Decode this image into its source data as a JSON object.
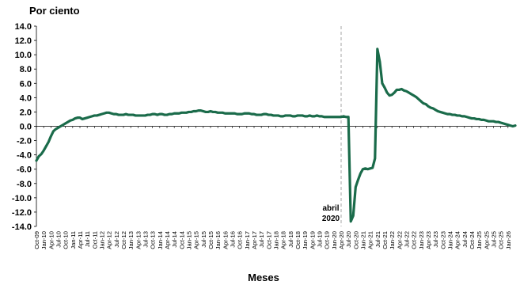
{
  "chart_data": {
    "type": "line",
    "ylabel": "Por ciento",
    "xlabel": "Meses",
    "ylim": [
      -14,
      14
    ],
    "yticks": [
      14,
      12,
      10,
      8,
      6,
      4,
      2,
      0,
      -2,
      -4,
      -6,
      -8,
      -10,
      -12,
      -14
    ],
    "ytick_labels": [
      "14.0",
      "12.0",
      "10.0",
      "8.0",
      "6.0",
      "4.0",
      "2.0",
      "0.0",
      "-2.0",
      "-4.0",
      "-6.0",
      "-8.0",
      "-10.0",
      "-12.0",
      "-14.0"
    ],
    "x_start": "Oct-09",
    "x_end": "Jan-26",
    "x_tick_labels": [
      "Oct-09",
      "Jan-10",
      "Apr-10",
      "Jul-10",
      "Oct-10",
      "Jan-11",
      "Apr-11",
      "Jul-11",
      "Oct-11",
      "Jan-12",
      "Apr-12",
      "Jul-12",
      "Oct-12",
      "Jan-13",
      "Apr-13",
      "Jul-13",
      "Oct-13",
      "Jan-14",
      "Apr-14",
      "Jul-14",
      "Oct-14",
      "Jan-15",
      "Apr-15",
      "Jul-15",
      "Oct-15",
      "Jan-16",
      "Apr-16",
      "Jul-16",
      "Oct-16",
      "Jan-17",
      "Apr-17",
      "Jul-17",
      "Oct-17",
      "Jan-18",
      "Apr-18",
      "Jul-18",
      "Oct-18",
      "Jan-19",
      "Apr-19",
      "Jul-19",
      "Oct-19",
      "Jan-20",
      "Apr-20",
      "Jul-20",
      "Oct-20",
      "Jan-21",
      "Apr-21",
      "Jul-21",
      "Oct-21",
      "Jan-22",
      "Apr-22",
      "Jul-22",
      "Oct-22",
      "Jan-23",
      "Apr-23",
      "Jul-23",
      "Oct-23",
      "Jan-24",
      "Apr-24",
      "Jul-24",
      "Oct-24",
      "Jan-25",
      "Apr-25",
      "Jul-25",
      "Oct-25",
      "Jan-26"
    ],
    "grid": false,
    "line_color": "#1a6b4a",
    "marker_line_color": "#a6a6a6",
    "marker_date": "Apr-20",
    "annotation_lines": [
      "abril",
      "2020"
    ],
    "series": [
      {
        "values": [
          -4.8,
          -4.2,
          -3.9,
          -3.4,
          -2.8,
          -2.2,
          -1.4,
          -0.7,
          -0.4,
          -0.2,
          0.0,
          0.2,
          0.4,
          0.6,
          0.8,
          0.9,
          1.1,
          1.2,
          1.2,
          1.0,
          1.1,
          1.2,
          1.3,
          1.4,
          1.5,
          1.5,
          1.6,
          1.7,
          1.8,
          1.9,
          1.9,
          1.8,
          1.7,
          1.7,
          1.6,
          1.6,
          1.6,
          1.7,
          1.6,
          1.6,
          1.6,
          1.5,
          1.5,
          1.5,
          1.5,
          1.5,
          1.6,
          1.6,
          1.7,
          1.7,
          1.6,
          1.7,
          1.7,
          1.6,
          1.6,
          1.7,
          1.7,
          1.8,
          1.8,
          1.8,
          1.9,
          1.9,
          1.9,
          2.0,
          2.0,
          2.1,
          2.1,
          2.2,
          2.2,
          2.1,
          2.0,
          2.0,
          2.1,
          2.0,
          2.0,
          1.9,
          1.9,
          1.9,
          1.8,
          1.8,
          1.8,
          1.8,
          1.8,
          1.7,
          1.7,
          1.7,
          1.8,
          1.8,
          1.8,
          1.7,
          1.7,
          1.6,
          1.6,
          1.6,
          1.7,
          1.7,
          1.6,
          1.6,
          1.5,
          1.5,
          1.5,
          1.4,
          1.4,
          1.5,
          1.5,
          1.5,
          1.4,
          1.4,
          1.5,
          1.5,
          1.5,
          1.4,
          1.4,
          1.5,
          1.4,
          1.4,
          1.5,
          1.4,
          1.4,
          1.3,
          1.3,
          1.3,
          1.3,
          1.3,
          1.3,
          1.3,
          1.3,
          1.4,
          1.3,
          1.3,
          -13.3,
          -12.5,
          -8.5,
          -7.5,
          -6.6,
          -6.0,
          -5.9,
          -6.0,
          -5.9,
          -5.8,
          -4.5,
          10.8,
          9.0,
          6.0,
          5.4,
          4.7,
          4.3,
          4.4,
          4.7,
          5.1,
          5.1,
          5.2,
          5.0,
          4.9,
          4.7,
          4.5,
          4.3,
          4.1,
          3.8,
          3.5,
          3.2,
          3.1,
          2.8,
          2.6,
          2.5,
          2.3,
          2.1,
          2.0,
          1.9,
          1.8,
          1.7,
          1.7,
          1.6,
          1.6,
          1.5,
          1.5,
          1.4,
          1.4,
          1.3,
          1.2,
          1.1,
          1.1,
          1.0,
          1.0,
          0.9,
          0.9,
          0.8,
          0.7,
          0.7,
          0.7,
          0.6,
          0.6,
          0.5,
          0.4,
          0.3,
          0.2,
          0.1,
          0.0,
          0.1
        ]
      }
    ]
  }
}
